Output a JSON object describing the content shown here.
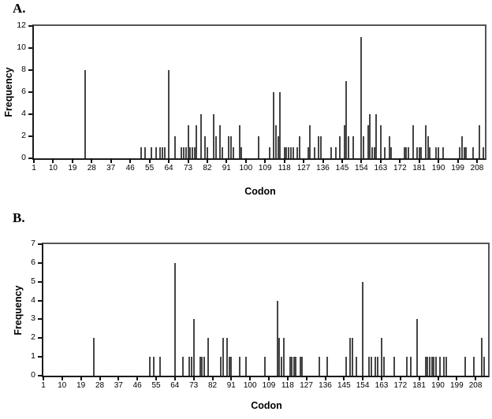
{
  "figure_title": "",
  "bar_color": "#454545",
  "axis_color": "#1c1c1c",
  "frame_color": "#555555",
  "chart_data": [
    {
      "type": "bar",
      "panel_label": "A.",
      "xlabel": "Codon",
      "ylabel": "Frequency",
      "ylim": [
        0,
        12
      ],
      "y_ticks": [
        0,
        2,
        4,
        6,
        8,
        10,
        12
      ],
      "x_ticks": [
        1,
        10,
        19,
        28,
        37,
        46,
        55,
        64,
        73,
        82,
        91,
        100,
        109,
        118,
        127,
        136,
        145,
        154,
        163,
        172,
        181,
        190,
        199,
        208
      ],
      "grid": false,
      "legend": "none",
      "points": [
        [
          25,
          8
        ],
        [
          51,
          1
        ],
        [
          53,
          1
        ],
        [
          56,
          1
        ],
        [
          58,
          1
        ],
        [
          60,
          1
        ],
        [
          61,
          1
        ],
        [
          62,
          1
        ],
        [
          64,
          8
        ],
        [
          67,
          2
        ],
        [
          70,
          1
        ],
        [
          71,
          1
        ],
        [
          72,
          1
        ],
        [
          73,
          3
        ],
        [
          74,
          1
        ],
        [
          75,
          1
        ],
        [
          76,
          1
        ],
        [
          77,
          3
        ],
        [
          79,
          4
        ],
        [
          81,
          2
        ],
        [
          82,
          1
        ],
        [
          85,
          4
        ],
        [
          86,
          2
        ],
        [
          88,
          3
        ],
        [
          89,
          1
        ],
        [
          92,
          2
        ],
        [
          93,
          2
        ],
        [
          94,
          1
        ],
        [
          97,
          3
        ],
        [
          98,
          1
        ],
        [
          106,
          2
        ],
        [
          111,
          1
        ],
        [
          113,
          6
        ],
        [
          114,
          3
        ],
        [
          115,
          2
        ],
        [
          116,
          6
        ],
        [
          118,
          1
        ],
        [
          119,
          1
        ],
        [
          120,
          1
        ],
        [
          121,
          1
        ],
        [
          122,
          1
        ],
        [
          124,
          1
        ],
        [
          125,
          2
        ],
        [
          129,
          1
        ],
        [
          130,
          3
        ],
        [
          132,
          1
        ],
        [
          134,
          2
        ],
        [
          135,
          2
        ],
        [
          140,
          1
        ],
        [
          142,
          1
        ],
        [
          144,
          2
        ],
        [
          146,
          3
        ],
        [
          147,
          7
        ],
        [
          148,
          2
        ],
        [
          150,
          2
        ],
        [
          154,
          11
        ],
        [
          155,
          2
        ],
        [
          157,
          3
        ],
        [
          158,
          4
        ],
        [
          159,
          1
        ],
        [
          160,
          1
        ],
        [
          161,
          4
        ],
        [
          163,
          3
        ],
        [
          165,
          1
        ],
        [
          167,
          2
        ],
        [
          168,
          1
        ],
        [
          174,
          1
        ],
        [
          175,
          1
        ],
        [
          176,
          1
        ],
        [
          178,
          3
        ],
        [
          180,
          1
        ],
        [
          181,
          1
        ],
        [
          182,
          1
        ],
        [
          184,
          3
        ],
        [
          185,
          2
        ],
        [
          186,
          1
        ],
        [
          189,
          1
        ],
        [
          190,
          1
        ],
        [
          192,
          1
        ],
        [
          200,
          1
        ],
        [
          201,
          2
        ],
        [
          202,
          1
        ],
        [
          203,
          1
        ],
        [
          206,
          1
        ],
        [
          209,
          3
        ],
        [
          211,
          1
        ]
      ]
    },
    {
      "type": "bar",
      "panel_label": "B.",
      "xlabel": "Codon",
      "ylabel": "Frequency",
      "ylim": [
        0,
        7
      ],
      "y_ticks": [
        0,
        1,
        2,
        3,
        4,
        5,
        6,
        7
      ],
      "x_ticks": [
        1,
        10,
        19,
        28,
        37,
        46,
        55,
        64,
        73,
        82,
        91,
        100,
        109,
        118,
        127,
        136,
        145,
        154,
        163,
        172,
        181,
        190,
        199,
        208
      ],
      "grid": false,
      "legend": "none",
      "points": [
        [
          25,
          2
        ],
        [
          52,
          1
        ],
        [
          54,
          1
        ],
        [
          57,
          1
        ],
        [
          64,
          6
        ],
        [
          68,
          1
        ],
        [
          71,
          1
        ],
        [
          72,
          1
        ],
        [
          73,
          3
        ],
        [
          76,
          1
        ],
        [
          77,
          1
        ],
        [
          78,
          1
        ],
        [
          80,
          2
        ],
        [
          86,
          1
        ],
        [
          87,
          2
        ],
        [
          89,
          2
        ],
        [
          90,
          1
        ],
        [
          91,
          1
        ],
        [
          95,
          1
        ],
        [
          98,
          1
        ],
        [
          107,
          1
        ],
        [
          113,
          4
        ],
        [
          114,
          2
        ],
        [
          115,
          1
        ],
        [
          116,
          2
        ],
        [
          119,
          1
        ],
        [
          120,
          1
        ],
        [
          121,
          1
        ],
        [
          122,
          1
        ],
        [
          124,
          1
        ],
        [
          125,
          1
        ],
        [
          133,
          1
        ],
        [
          137,
          1
        ],
        [
          146,
          1
        ],
        [
          148,
          2
        ],
        [
          149,
          2
        ],
        [
          151,
          1
        ],
        [
          154,
          5
        ],
        [
          157,
          1
        ],
        [
          158,
          1
        ],
        [
          160,
          1
        ],
        [
          161,
          1
        ],
        [
          163,
          2
        ],
        [
          164,
          1
        ],
        [
          169,
          1
        ],
        [
          175,
          1
        ],
        [
          177,
          1
        ],
        [
          180,
          3
        ],
        [
          184,
          1
        ],
        [
          185,
          1
        ],
        [
          186,
          1
        ],
        [
          187,
          1
        ],
        [
          188,
          1
        ],
        [
          189,
          1
        ],
        [
          191,
          1
        ],
        [
          193,
          1
        ],
        [
          194,
          1
        ],
        [
          203,
          1
        ],
        [
          207,
          1
        ],
        [
          211,
          2
        ],
        [
          212,
          1
        ]
      ]
    }
  ]
}
